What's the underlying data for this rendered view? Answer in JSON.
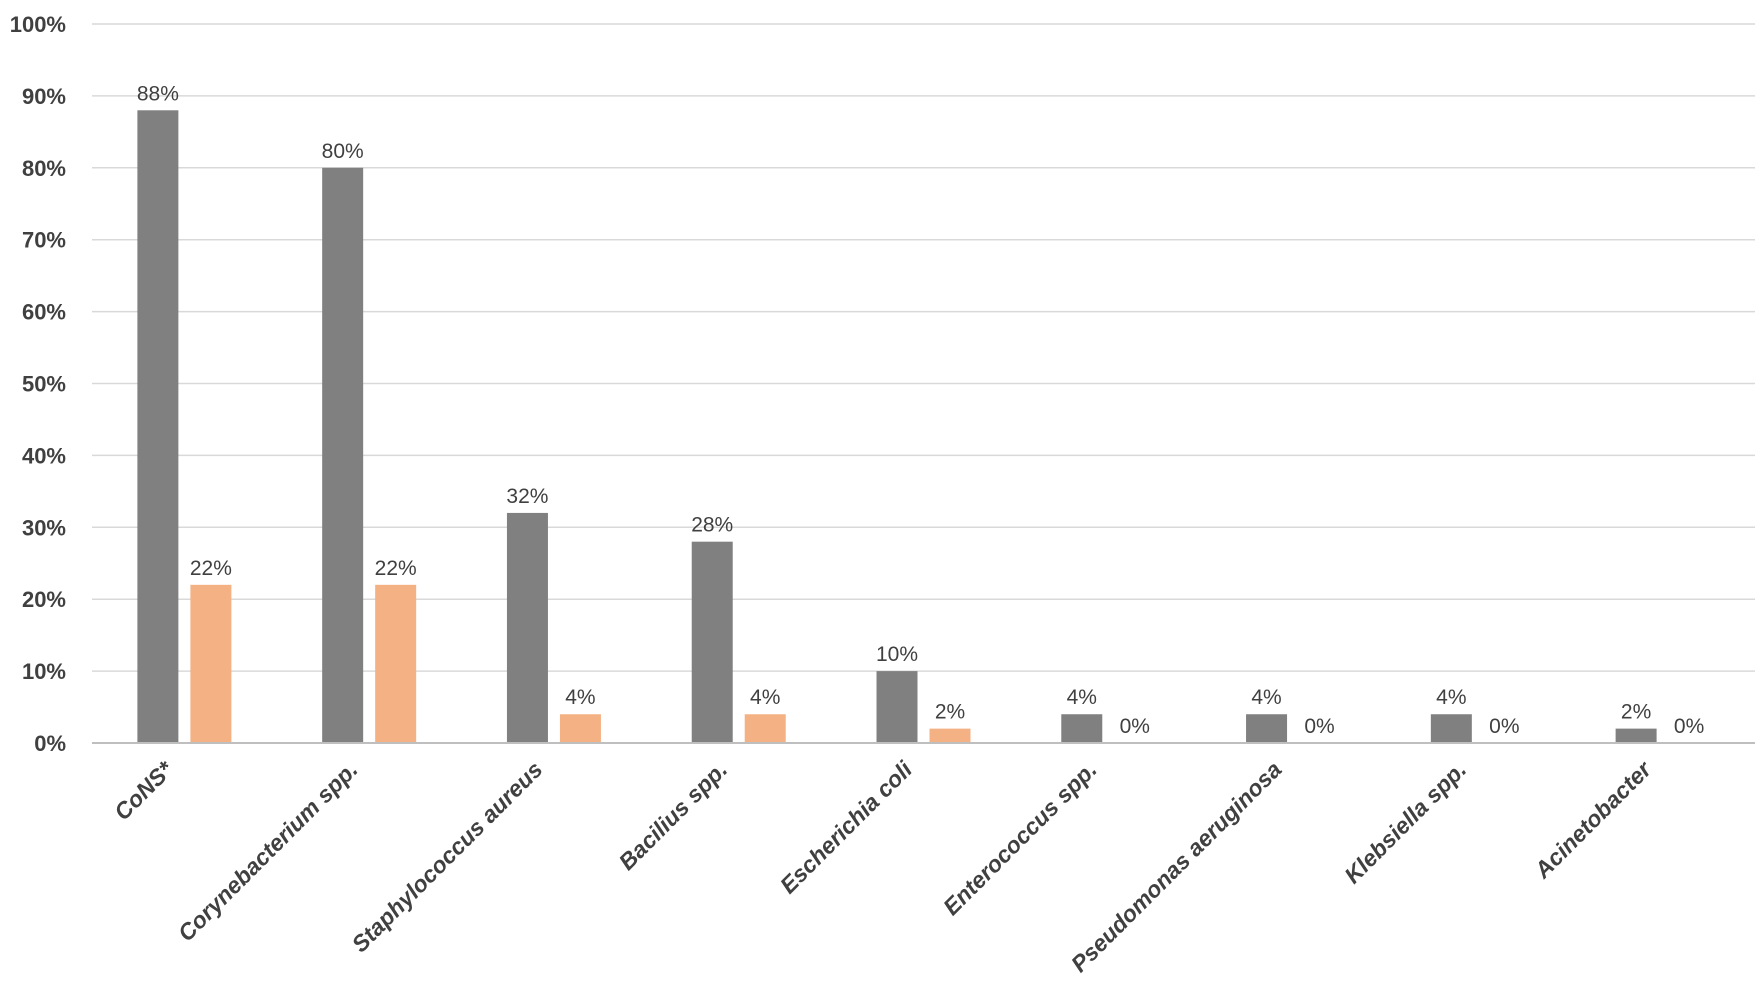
{
  "chart_data": {
    "type": "bar",
    "categories": [
      "CoNS*",
      "Corynebacterium spp.",
      "Staphylococcus aureus",
      "Bacilius spp.",
      "Escherichia coli",
      "Enterococcus spp.",
      "Pseudomonas aeruginosa",
      "Klebsiella spp.",
      "Acinetobacter"
    ],
    "series": [
      {
        "values": [
          88,
          80,
          32,
          28,
          10,
          4,
          4,
          4,
          2
        ],
        "data_labels": [
          "88%",
          "80%",
          "32%",
          "28%",
          "10%",
          "4%",
          "4%",
          "4%",
          "2%"
        ],
        "color": "#808080"
      },
      {
        "values": [
          22,
          22,
          4,
          4,
          2,
          0,
          0,
          0,
          0
        ],
        "data_labels": [
          "22%",
          "22%",
          "4%",
          "4%",
          "2%",
          "0%",
          "0%",
          "0%",
          "0%"
        ],
        "color": "#f4b183"
      }
    ],
    "ylim": [
      0,
      100
    ],
    "y_ticks": [
      "0%",
      "10%",
      "20%",
      "30%",
      "40%",
      "50%",
      "60%",
      "70%",
      "80%",
      "90%",
      "100%"
    ],
    "grid": true,
    "legend": "none",
    "title": "",
    "xlabel": "",
    "ylabel": ""
  }
}
